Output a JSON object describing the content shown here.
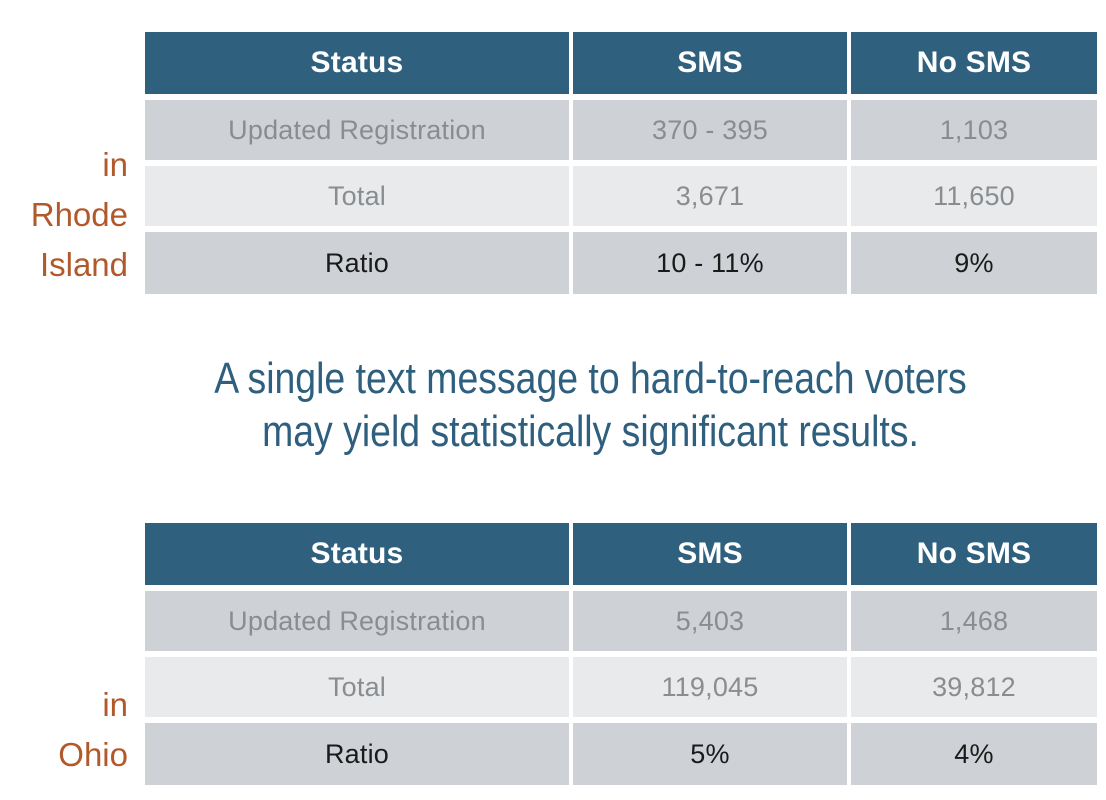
{
  "colors": {
    "header_bg": "#2F617F",
    "row_gray_bg": "#CED2D6",
    "row_light_bg": "#E8EAEC",
    "muted_text": "#8A8D90",
    "dark_text": "#1A1A1A",
    "accent_orange": "#B2592B",
    "message_teal": "#2E5F7E"
  },
  "message": {
    "line1": "A single text message to hard-to-reach voters",
    "line2": "may yield statistically significant results."
  },
  "tables": [
    {
      "region": "Rhode Island",
      "region_label_lines": [
        "in",
        "Rhode",
        "Island"
      ],
      "columns": [
        "Status",
        "SMS",
        "No SMS"
      ],
      "rows": [
        {
          "status": "Updated Registration",
          "sms": "370 - 395",
          "no_sms": "1,103"
        },
        {
          "status": "Total",
          "sms": "3,671",
          "no_sms": "11,650"
        },
        {
          "status": "Ratio",
          "sms": "10 - 11%",
          "no_sms": "9%"
        }
      ]
    },
    {
      "region": "Ohio",
      "region_label_lines": [
        "in",
        "Ohio"
      ],
      "columns": [
        "Status",
        "SMS",
        "No SMS"
      ],
      "rows": [
        {
          "status": "Updated Registration",
          "sms": "5,403",
          "no_sms": "1,468"
        },
        {
          "status": "Total",
          "sms": "119,045",
          "no_sms": "39,812"
        },
        {
          "status": "Ratio",
          "sms": "5%",
          "no_sms": "4%"
        }
      ]
    }
  ]
}
